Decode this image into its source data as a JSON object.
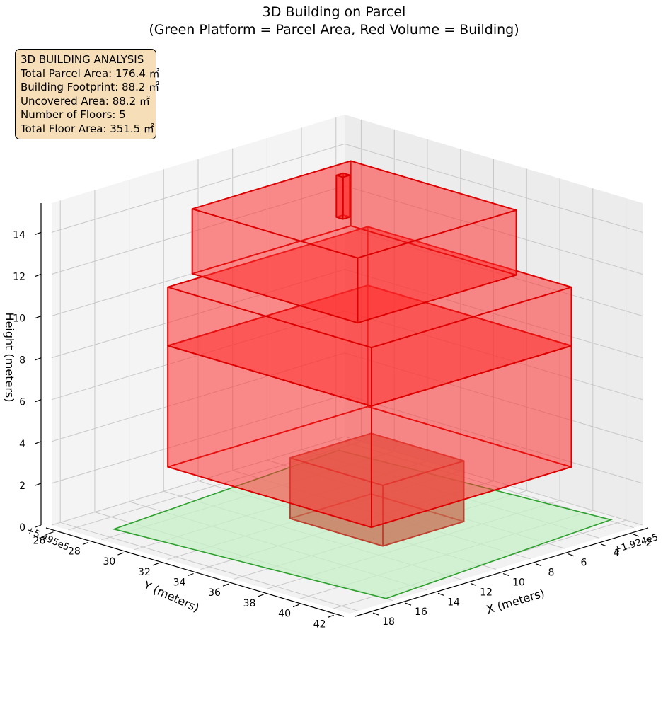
{
  "chart_data": {
    "type": "3d-polygons",
    "title": "3D Building on Parcel",
    "subtitle": "(Green Platform = Parcel Area, Red Volume = Building)",
    "xlabel": "X (meters)",
    "ylabel": "Y (meters)",
    "zlabel": "Height (meters)",
    "x_offset_label": "+1.924e5",
    "y_offset_label": "+5.495e5",
    "x_ticks": [
      "2",
      "4",
      "6",
      "8",
      "10",
      "12",
      "14",
      "16",
      "18"
    ],
    "y_ticks": [
      "26",
      "28",
      "30",
      "32",
      "34",
      "36",
      "38",
      "40",
      "42"
    ],
    "z_ticks": [
      "0",
      "2",
      "4",
      "6",
      "8",
      "10",
      "12",
      "14"
    ],
    "grid": true,
    "info_box": {
      "lines": [
        "3D BUILDING ANALYSIS",
        "Total Parcel Area: 176.4 ㎡",
        "Building Footprint: 88.2 ㎡",
        "Uncovered Area: 88.2 ㎡",
        "Number of Floors: 5",
        "Total Floor Area: 351.5 ㎡"
      ]
    },
    "colors": {
      "parcel_fill": "#c7efc7",
      "parcel_edge": "#2ca02c",
      "building_fill": "#ff3030",
      "building_edge": "#dd0000",
      "ground_floor_fill": "#c8765a",
      "ground_floor_edge": "#c04030"
    }
  }
}
